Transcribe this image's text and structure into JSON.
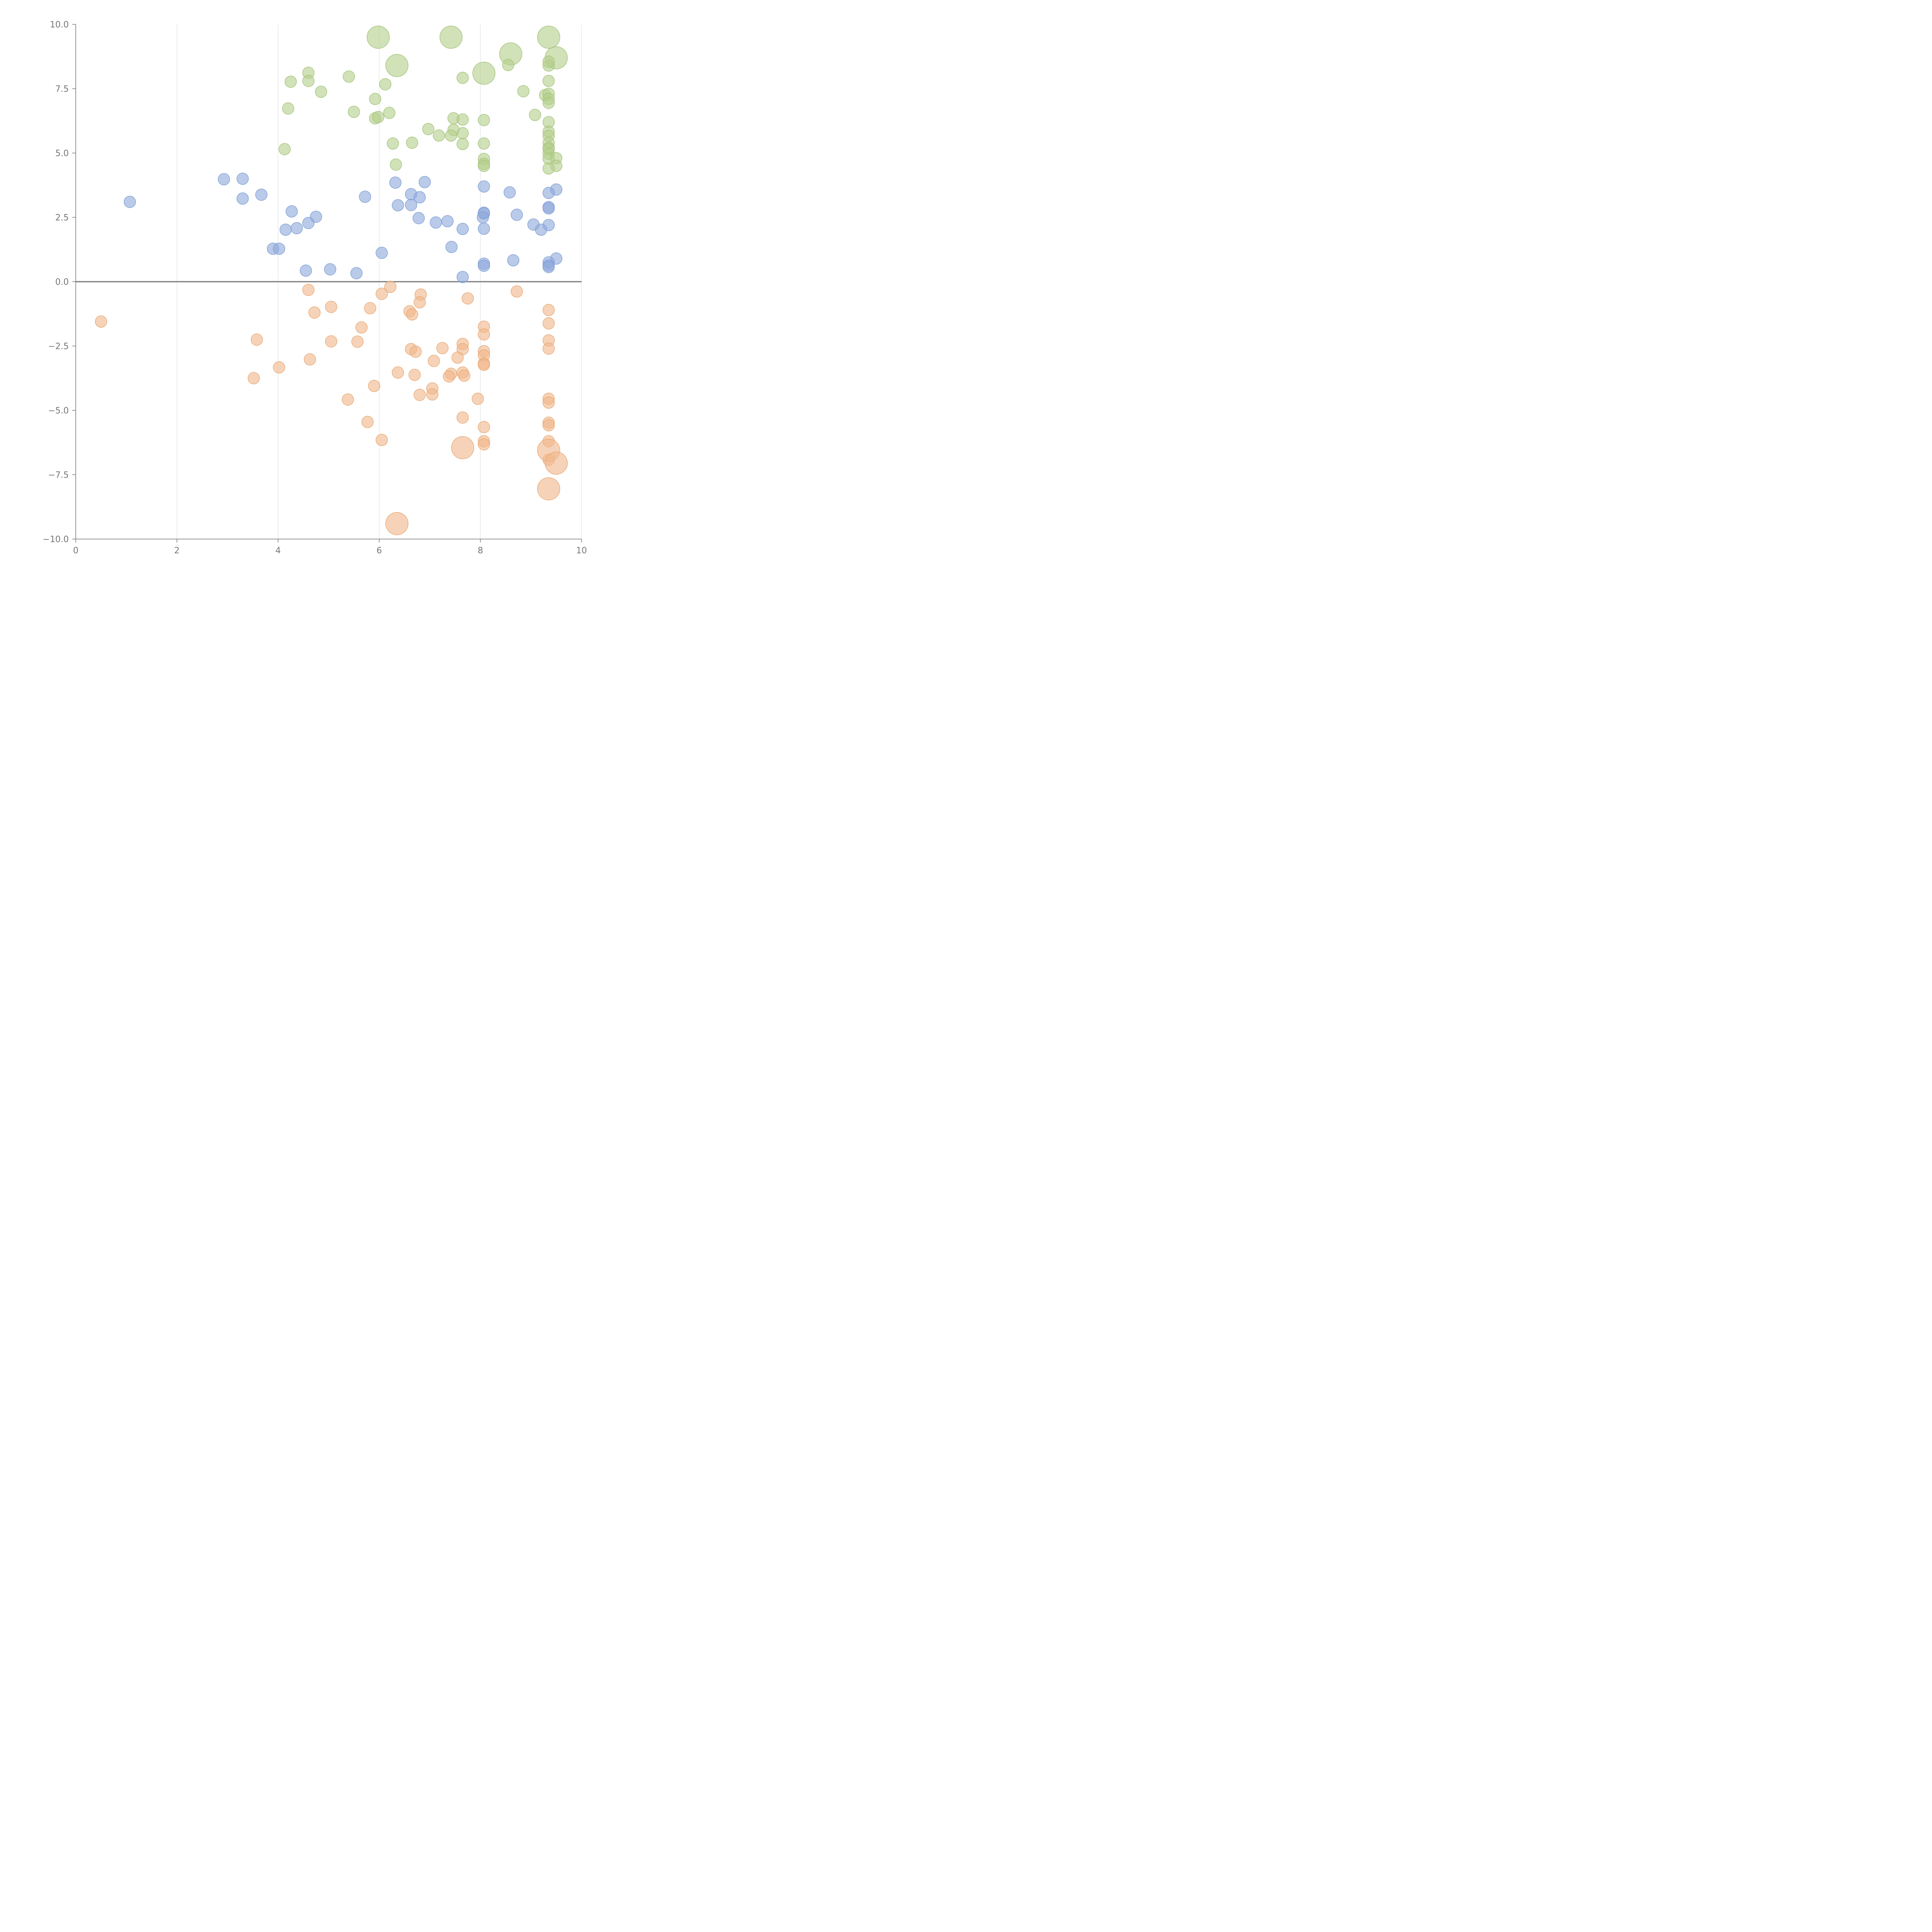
{
  "chart_data": {
    "type": "scatter",
    "title": "",
    "xlabel": "",
    "ylabel": "",
    "xlim": [
      0,
      10
    ],
    "ylim": [
      -10,
      10
    ],
    "x_ticks": [
      0,
      2,
      4,
      6,
      8,
      10
    ],
    "x_tick_labels": [
      "0",
      "2",
      "4",
      "6",
      "8",
      "10"
    ],
    "y_ticks": [
      10,
      7.5,
      5,
      2.5,
      0,
      -2.5,
      -5,
      -7.5,
      -10
    ],
    "y_tick_labels": [
      "10.0",
      "7.5",
      "5.0",
      "2.5",
      "0.0",
      "−2.5",
      "−5.0",
      "−7.5",
      "−10.0"
    ],
    "vertical_grid": true,
    "horizontal_grid": false,
    "zero_line": true,
    "series": [
      {
        "color": "#b5cf8c",
        "stroke": "#a3c47a",
        "points": [
          [
            5.98,
            9.5,
            2
          ],
          [
            7.42,
            9.5,
            2
          ],
          [
            9.35,
            9.5,
            2
          ],
          [
            8.6,
            8.85,
            2
          ],
          [
            9.5,
            8.7,
            2
          ],
          [
            6.35,
            8.4,
            2
          ],
          [
            8.07,
            8.1,
            2
          ],
          [
            4.6,
            8.12,
            1
          ],
          [
            5.4,
            7.97,
            1
          ],
          [
            4.25,
            7.77,
            1
          ],
          [
            4.6,
            7.8,
            1
          ],
          [
            7.65,
            7.92,
            1
          ],
          [
            6.12,
            7.67,
            1
          ],
          [
            4.85,
            7.38,
            1
          ],
          [
            8.85,
            7.4,
            1
          ],
          [
            9.28,
            7.25,
            1
          ],
          [
            9.35,
            7.3,
            1
          ],
          [
            9.35,
            7.1,
            1
          ],
          [
            9.35,
            6.95,
            1
          ],
          [
            9.35,
            7.8,
            1
          ],
          [
            9.35,
            8.4,
            1
          ],
          [
            9.35,
            8.55,
            1
          ],
          [
            8.55,
            8.42,
            1
          ],
          [
            5.92,
            7.1,
            1
          ],
          [
            4.2,
            6.73,
            1
          ],
          [
            5.5,
            6.6,
            1
          ],
          [
            6.2,
            6.56,
            1
          ],
          [
            9.08,
            6.48,
            1
          ],
          [
            5.92,
            6.35,
            1
          ],
          [
            5.98,
            6.4,
            1
          ],
          [
            7.47,
            6.35,
            1
          ],
          [
            7.65,
            6.3,
            1
          ],
          [
            8.07,
            6.28,
            1
          ],
          [
            9.35,
            6.2,
            1
          ],
          [
            6.97,
            5.93,
            1
          ],
          [
            7.47,
            5.9,
            1
          ],
          [
            7.18,
            5.68,
            1
          ],
          [
            7.42,
            5.68,
            1
          ],
          [
            7.65,
            5.77,
            1
          ],
          [
            9.35,
            5.83,
            1
          ],
          [
            9.35,
            5.67,
            1
          ],
          [
            6.27,
            5.37,
            1
          ],
          [
            6.65,
            5.4,
            1
          ],
          [
            7.65,
            5.35,
            1
          ],
          [
            8.07,
            5.37,
            1
          ],
          [
            9.35,
            5.4,
            1
          ],
          [
            9.35,
            5.2,
            1
          ],
          [
            9.35,
            5.15,
            1
          ],
          [
            4.13,
            5.15,
            1
          ],
          [
            9.35,
            4.97,
            1
          ],
          [
            9.35,
            4.78,
            1
          ],
          [
            9.5,
            4.8,
            1
          ],
          [
            8.07,
            4.77,
            1
          ],
          [
            8.07,
            4.58,
            1
          ],
          [
            8.07,
            4.5,
            1
          ],
          [
            6.33,
            4.55,
            1
          ],
          [
            9.5,
            4.5,
            1
          ],
          [
            9.35,
            4.4,
            1
          ]
        ]
      },
      {
        "color": "#8faadc",
        "stroke": "#7e9ed4",
        "points": [
          [
            1.07,
            3.1,
            1
          ],
          [
            2.93,
            3.98,
            1
          ],
          [
            3.3,
            4.0,
            1
          ],
          [
            3.3,
            3.23,
            1
          ],
          [
            3.67,
            3.38,
            1
          ],
          [
            6.32,
            3.85,
            1
          ],
          [
            6.9,
            3.87,
            1
          ],
          [
            8.07,
            3.7,
            1
          ],
          [
            9.5,
            3.58,
            1
          ],
          [
            8.58,
            3.47,
            1
          ],
          [
            9.35,
            3.45,
            1
          ],
          [
            6.63,
            3.4,
            1
          ],
          [
            6.8,
            3.28,
            1
          ],
          [
            5.72,
            3.3,
            1
          ],
          [
            6.37,
            2.97,
            1
          ],
          [
            6.63,
            2.98,
            1
          ],
          [
            9.35,
            2.9,
            1
          ],
          [
            9.35,
            2.85,
            1
          ],
          [
            4.27,
            2.73,
            1
          ],
          [
            8.07,
            2.65,
            1
          ],
          [
            8.07,
            2.68,
            1
          ],
          [
            8.72,
            2.6,
            1
          ],
          [
            4.75,
            2.52,
            1
          ],
          [
            8.05,
            2.5,
            1
          ],
          [
            6.78,
            2.47,
            1
          ],
          [
            7.35,
            2.35,
            1
          ],
          [
            7.12,
            2.3,
            1
          ],
          [
            4.6,
            2.28,
            1
          ],
          [
            9.05,
            2.22,
            1
          ],
          [
            9.35,
            2.2,
            1
          ],
          [
            4.37,
            2.08,
            1
          ],
          [
            7.65,
            2.05,
            1
          ],
          [
            8.07,
            2.06,
            1
          ],
          [
            9.2,
            2.02,
            1
          ],
          [
            4.15,
            2.02,
            1
          ],
          [
            7.43,
            1.35,
            1
          ],
          [
            3.9,
            1.28,
            1
          ],
          [
            4.02,
            1.28,
            1
          ],
          [
            6.05,
            1.12,
            1
          ],
          [
            9.5,
            0.9,
            1
          ],
          [
            8.65,
            0.83,
            1
          ],
          [
            9.35,
            0.75,
            1
          ],
          [
            8.07,
            0.7,
            1
          ],
          [
            9.35,
            0.63,
            1
          ],
          [
            8.07,
            0.62,
            1
          ],
          [
            9.35,
            0.57,
            1
          ],
          [
            4.55,
            0.43,
            1
          ],
          [
            5.03,
            0.48,
            1
          ],
          [
            5.55,
            0.33,
            1
          ],
          [
            7.65,
            0.18,
            1
          ]
        ]
      },
      {
        "color": "#f0b88c",
        "stroke": "#e8a672",
        "points": [
          [
            6.22,
            -0.2,
            1
          ],
          [
            4.6,
            -0.32,
            1
          ],
          [
            8.72,
            -0.38,
            1
          ],
          [
            6.05,
            -0.47,
            1
          ],
          [
            6.82,
            -0.5,
            1
          ],
          [
            7.75,
            -0.65,
            1
          ],
          [
            6.8,
            -0.8,
            1
          ],
          [
            5.05,
            -0.98,
            1
          ],
          [
            5.82,
            -1.03,
            1
          ],
          [
            9.35,
            -1.1,
            1
          ],
          [
            6.6,
            -1.15,
            1
          ],
          [
            6.65,
            -1.27,
            1
          ],
          [
            4.72,
            -1.2,
            1
          ],
          [
            0.5,
            -1.55,
            1
          ],
          [
            9.35,
            -1.62,
            1
          ],
          [
            8.07,
            -1.75,
            1
          ],
          [
            5.65,
            -1.78,
            1
          ],
          [
            8.07,
            -2.05,
            1
          ],
          [
            3.58,
            -2.25,
            1
          ],
          [
            5.05,
            -2.32,
            1
          ],
          [
            5.57,
            -2.33,
            1
          ],
          [
            9.35,
            -2.28,
            1
          ],
          [
            7.65,
            -2.42,
            1
          ],
          [
            7.25,
            -2.58,
            1
          ],
          [
            6.63,
            -2.62,
            1
          ],
          [
            6.72,
            -2.72,
            1
          ],
          [
            7.65,
            -2.62,
            1
          ],
          [
            9.35,
            -2.6,
            1
          ],
          [
            8.07,
            -2.7,
            1
          ],
          [
            8.07,
            -2.87,
            1
          ],
          [
            7.55,
            -2.95,
            1
          ],
          [
            4.63,
            -3.02,
            1
          ],
          [
            7.08,
            -3.08,
            1
          ],
          [
            8.07,
            -3.18,
            1
          ],
          [
            8.07,
            -3.23,
            1
          ],
          [
            4.02,
            -3.33,
            1
          ],
          [
            6.37,
            -3.53,
            1
          ],
          [
            7.65,
            -3.53,
            1
          ],
          [
            7.42,
            -3.58,
            1
          ],
          [
            6.7,
            -3.62,
            1
          ],
          [
            7.68,
            -3.65,
            1
          ],
          [
            7.38,
            -3.68,
            1
          ],
          [
            3.52,
            -3.75,
            1
          ],
          [
            5.9,
            -4.05,
            1
          ],
          [
            7.05,
            -4.15,
            1
          ],
          [
            7.05,
            -4.38,
            1
          ],
          [
            6.8,
            -4.4,
            1
          ],
          [
            5.38,
            -4.58,
            1
          ],
          [
            7.95,
            -4.55,
            1
          ],
          [
            9.35,
            -4.55,
            1
          ],
          [
            9.35,
            -4.7,
            1
          ],
          [
            7.65,
            -5.28,
            1
          ],
          [
            5.77,
            -5.45,
            1
          ],
          [
            9.35,
            -5.48,
            1
          ],
          [
            9.35,
            -5.58,
            1
          ],
          [
            8.07,
            -5.65,
            1
          ],
          [
            6.05,
            -6.15,
            1
          ],
          [
            9.35,
            -6.2,
            1
          ],
          [
            8.07,
            -6.2,
            1
          ],
          [
            8.07,
            -6.32,
            1
          ],
          [
            9.35,
            -6.92,
            1
          ],
          [
            7.65,
            -6.45,
            2
          ],
          [
            9.35,
            -6.55,
            2
          ],
          [
            9.5,
            -7.05,
            2
          ],
          [
            9.35,
            -8.05,
            2
          ],
          [
            6.35,
            -9.4,
            2
          ]
        ]
      }
    ]
  }
}
